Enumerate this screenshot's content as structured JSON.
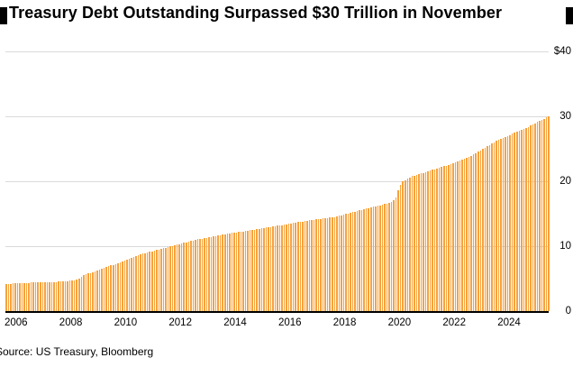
{
  "header": {
    "title": "Treasury Debt Outstanding Surpassed $30 Trillion in November"
  },
  "chart_data": {
    "type": "bar",
    "title": "Treasury Debt Outstanding Surpassed $30 Trillion in November",
    "x_unit": "month",
    "x_range": "Jan 2006 - Nov 2025",
    "x_tick_labels": [
      "2006",
      "2008",
      "2010",
      "2012",
      "2014",
      "2016",
      "2018",
      "2020",
      "2022",
      "2024"
    ],
    "y_tick_labels": [
      "$40",
      "30",
      "20",
      "10",
      "0"
    ],
    "ylim": [
      0,
      40
    ],
    "grid": "horizontal",
    "legend": "none",
    "y_axis_side": "right",
    "bar_color": "#F7A23C",
    "values_unit": "trillion USD",
    "monthly_values": [
      4.2,
      4.22,
      4.23,
      4.25,
      4.27,
      4.28,
      4.3,
      4.32,
      4.33,
      4.35,
      4.37,
      4.38,
      4.4,
      4.41,
      4.42,
      4.43,
      4.44,
      4.45,
      4.46,
      4.48,
      4.49,
      4.5,
      4.51,
      4.52,
      4.53,
      4.55,
      4.58,
      4.62,
      4.66,
      4.7,
      4.75,
      4.82,
      4.95,
      5.25,
      5.5,
      5.7,
      5.78,
      5.9,
      6.02,
      6.15,
      6.27,
      6.4,
      6.52,
      6.64,
      6.77,
      6.89,
      7.02,
      7.14,
      7.27,
      7.4,
      7.53,
      7.66,
      7.8,
      7.93,
      8.06,
      8.19,
      8.33,
      8.46,
      8.59,
      8.72,
      8.86,
      8.95,
      9.04,
      9.13,
      9.22,
      9.31,
      9.4,
      9.49,
      9.58,
      9.67,
      9.76,
      9.85,
      9.94,
      10.03,
      10.12,
      10.22,
      10.31,
      10.4,
      10.5,
      10.59,
      10.68,
      10.77,
      10.87,
      10.96,
      11.05,
      11.12,
      11.18,
      11.25,
      11.32,
      11.38,
      11.45,
      11.52,
      11.58,
      11.65,
      11.72,
      11.78,
      11.85,
      11.91,
      11.96,
      12.02,
      12.07,
      12.13,
      12.18,
      12.24,
      12.29,
      12.35,
      12.4,
      12.46,
      12.51,
      12.57,
      12.62,
      12.68,
      12.74,
      12.79,
      12.85,
      12.91,
      12.96,
      13.02,
      13.08,
      13.13,
      13.19,
      13.25,
      13.32,
      13.38,
      13.44,
      13.51,
      13.57,
      13.63,
      13.7,
      13.76,
      13.82,
      13.89,
      13.95,
      13.99,
      14.04,
      14.08,
      14.12,
      14.17,
      14.21,
      14.25,
      14.3,
      14.34,
      14.38,
      14.43,
      14.47,
      14.57,
      14.66,
      14.76,
      14.85,
      14.95,
      15.04,
      15.14,
      15.23,
      15.33,
      15.42,
      15.52,
      15.61,
      15.7,
      15.79,
      15.87,
      15.96,
      16.05,
      16.14,
      16.23,
      16.31,
      16.4,
      16.49,
      16.58,
      16.67,
      16.74,
      17.02,
      17.5,
      18.6,
      19.5,
      20.0,
      20.2,
      20.4,
      20.6,
      20.8,
      20.9,
      20.97,
      21.08,
      21.19,
      21.3,
      21.41,
      21.52,
      21.64,
      21.75,
      21.86,
      21.97,
      22.08,
      22.19,
      22.3,
      22.43,
      22.57,
      22.7,
      22.83,
      22.97,
      23.1,
      23.23,
      23.37,
      23.5,
      23.63,
      23.77,
      23.9,
      24.11,
      24.32,
      24.53,
      24.73,
      24.94,
      25.15,
      25.36,
      25.57,
      25.78,
      25.98,
      26.19,
      26.4,
      26.55,
      26.7,
      26.85,
      27.0,
      27.15,
      27.3,
      27.45,
      27.6,
      27.75,
      27.9,
      28.05,
      28.2,
      28.38,
      28.56,
      28.74,
      28.92,
      29.1,
      29.28,
      29.46,
      29.64,
      29.82,
      30.0
    ]
  },
  "footer": {
    "source": "Source: US Treasury, Bloomberg"
  }
}
